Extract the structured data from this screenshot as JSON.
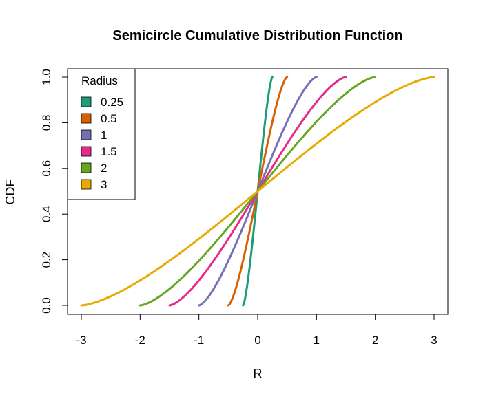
{
  "chart_data": {
    "type": "line",
    "title": "Semicircle Cumulative Distribution Function",
    "xlabel": "R",
    "ylabel": "CDF",
    "xlim": [
      -3,
      3
    ],
    "ylim": [
      0,
      1
    ],
    "xticks": [
      -3,
      -2,
      -1,
      0,
      1,
      2,
      3
    ],
    "xtick_labels": [
      "-3",
      "-2",
      "-1",
      "0",
      "1",
      "2",
      "3"
    ],
    "yticks": [
      0,
      0.2,
      0.4,
      0.6,
      0.8,
      1
    ],
    "ytick_labels": [
      "0.0",
      "0.2",
      "0.4",
      "0.6",
      "0.8",
      "1.0"
    ],
    "grid": false,
    "legend": {
      "title": "Radius",
      "placement": "top-left"
    },
    "series": [
      {
        "name": "0.25",
        "radius": 0.25,
        "color": "#1B9E77"
      },
      {
        "name": "0.5",
        "radius": 0.5,
        "color": "#D95F02"
      },
      {
        "name": "1",
        "radius": 1,
        "color": "#7570B3"
      },
      {
        "name": "1.5",
        "radius": 1.5,
        "color": "#E7298A"
      },
      {
        "name": "2",
        "radius": 2,
        "color": "#66A61E"
      },
      {
        "name": "3",
        "radius": 3,
        "color": "#E6AB02"
      }
    ]
  }
}
